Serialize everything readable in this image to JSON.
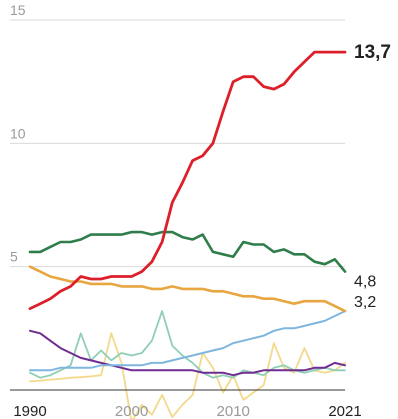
{
  "chart_data": {
    "type": "line",
    "title": "",
    "xlabel": "",
    "ylabel": "",
    "x": [
      1990,
      1991,
      1992,
      1993,
      1994,
      1995,
      1996,
      1997,
      1998,
      1999,
      2000,
      2001,
      2002,
      2003,
      2004,
      2005,
      2006,
      2007,
      2008,
      2009,
      2010,
      2011,
      2012,
      2013,
      2014,
      2015,
      2016,
      2017,
      2018,
      2019,
      2020,
      2021
    ],
    "xlim": [
      1990,
      2021
    ],
    "ylim": [
      0,
      15
    ],
    "y_ticks": [
      {
        "value": 5,
        "label": "5"
      },
      {
        "value": 10,
        "label": "10"
      },
      {
        "value": 15,
        "label": "15"
      }
    ],
    "x_ticks": [
      {
        "value": 1990,
        "label": "1990",
        "style": "end"
      },
      {
        "value": 2000,
        "label": "2000",
        "style": "mid"
      },
      {
        "value": 2010,
        "label": "2010",
        "style": "mid"
      },
      {
        "value": 2021,
        "label": "2021",
        "style": "end"
      }
    ],
    "grid": "horizontal",
    "series": [
      {
        "color": "#f2d98c",
        "width": 1.8,
        "end_label": "",
        "values": [
          0.35,
          0.38,
          0.42,
          0.45,
          0.5,
          0.52,
          0.55,
          0.6,
          2.3,
          1.1,
          -1.3,
          -0.6,
          -1.0,
          -0.2,
          -1.1,
          -0.6,
          -0.2,
          1.5,
          0.9,
          -0.1,
          0.6,
          -0.4,
          -0.1,
          0.2,
          1.9,
          0.9,
          0.7,
          1.7,
          0.8,
          0.7,
          0.8,
          1.1
        ]
      },
      {
        "color": "#8fcfb5",
        "width": 1.8,
        "end_label": "",
        "values": [
          0.7,
          0.5,
          0.6,
          0.8,
          1.0,
          2.3,
          1.2,
          1.6,
          1.2,
          1.5,
          1.4,
          1.5,
          2.0,
          3.2,
          1.8,
          1.4,
          1.1,
          0.7,
          0.5,
          0.6,
          0.5,
          0.8,
          0.7,
          0.6,
          0.9,
          1.0,
          0.8,
          0.7,
          0.8,
          0.9,
          0.8,
          0.8
        ]
      },
      {
        "color": "#6f2c91",
        "width": 2.0,
        "end_label": "",
        "values": [
          2.4,
          2.3,
          2.0,
          1.7,
          1.5,
          1.3,
          1.2,
          1.1,
          1.0,
          0.9,
          0.8,
          0.8,
          0.8,
          0.8,
          0.8,
          0.8,
          0.8,
          0.7,
          0.7,
          0.7,
          0.6,
          0.7,
          0.7,
          0.8,
          0.8,
          0.8,
          0.8,
          0.8,
          0.9,
          0.9,
          1.1,
          1.0
        ]
      },
      {
        "color": "#7fb6e0",
        "width": 2.0,
        "end_label": "",
        "values": [
          0.8,
          0.8,
          0.8,
          0.9,
          0.9,
          0.9,
          0.9,
          1.0,
          1.0,
          1.0,
          1.0,
          1.0,
          1.1,
          1.1,
          1.2,
          1.3,
          1.4,
          1.5,
          1.6,
          1.7,
          1.9,
          2.0,
          2.1,
          2.2,
          2.4,
          2.5,
          2.5,
          2.6,
          2.7,
          2.8,
          3.0,
          3.2
        ]
      },
      {
        "color": "#e8a640",
        "width": 2.6,
        "end_label": "3,2",
        "values": [
          5.0,
          4.8,
          4.6,
          4.5,
          4.4,
          4.4,
          4.3,
          4.3,
          4.3,
          4.2,
          4.2,
          4.2,
          4.1,
          4.1,
          4.2,
          4.1,
          4.1,
          4.1,
          4.0,
          4.0,
          3.9,
          3.8,
          3.8,
          3.7,
          3.7,
          3.6,
          3.5,
          3.6,
          3.6,
          3.6,
          3.4,
          3.2
        ]
      },
      {
        "color": "#2e7d4a",
        "width": 2.6,
        "end_label": "4,8",
        "values": [
          5.6,
          5.6,
          5.8,
          6.0,
          6.0,
          6.1,
          6.3,
          6.3,
          6.3,
          6.3,
          6.4,
          6.4,
          6.3,
          6.4,
          6.4,
          6.2,
          6.1,
          6.3,
          5.6,
          5.5,
          5.4,
          6.0,
          5.9,
          5.9,
          5.6,
          5.7,
          5.5,
          5.5,
          5.2,
          5.1,
          5.3,
          4.8
        ]
      },
      {
        "color": "#dd1f2a",
        "width": 2.8,
        "end_label": "13,7",
        "highlight": true,
        "values": [
          3.3,
          3.5,
          3.7,
          4.0,
          4.2,
          4.6,
          4.5,
          4.5,
          4.6,
          4.6,
          4.6,
          4.8,
          5.2,
          6.0,
          7.6,
          8.4,
          9.3,
          9.5,
          10.0,
          11.3,
          12.5,
          12.7,
          12.7,
          12.3,
          12.2,
          12.4,
          12.9,
          13.3,
          13.7,
          13.7,
          13.7,
          13.7
        ]
      }
    ]
  }
}
